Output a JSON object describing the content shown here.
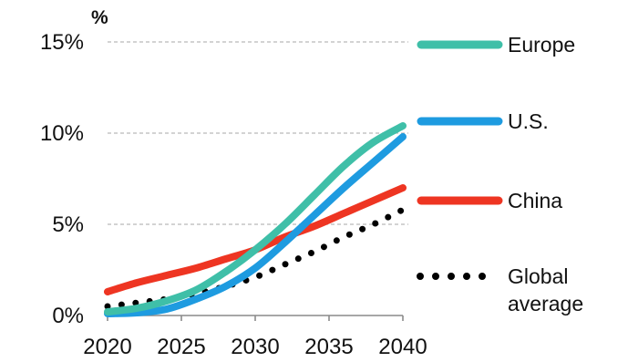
{
  "chart_data": {
    "type": "line",
    "title": "",
    "xlabel": "",
    "ylabel": "%",
    "x": [
      2020,
      2022,
      2024,
      2026,
      2028,
      2030,
      2032,
      2034,
      2036,
      2038,
      2040
    ],
    "xlim": [
      2020,
      2040
    ],
    "ylim": [
      0,
      15
    ],
    "x_ticks": [
      2020,
      2025,
      2030,
      2035,
      2040
    ],
    "x_tick_labels": [
      "2020",
      "2025",
      "2030",
      "2035",
      "2040"
    ],
    "y_ticks": [
      0,
      5,
      10,
      15
    ],
    "y_tick_labels": [
      "0%",
      "5%",
      "10%",
      "15%"
    ],
    "grid": true,
    "legend_position": "right",
    "series": [
      {
        "name": "Europe",
        "color": "#3fbfa8",
        "style": "solid",
        "values": [
          0.2,
          0.4,
          0.8,
          1.4,
          2.4,
          3.6,
          5.0,
          6.6,
          8.2,
          9.5,
          10.4
        ]
      },
      {
        "name": "U.S.",
        "color": "#1e9be0",
        "style": "solid",
        "values": [
          0.1,
          0.15,
          0.35,
          0.9,
          1.6,
          2.6,
          4.0,
          5.5,
          7.0,
          8.4,
          9.8
        ]
      },
      {
        "name": "China",
        "color": "#ee3522",
        "style": "solid",
        "values": [
          1.3,
          1.8,
          2.2,
          2.6,
          3.1,
          3.6,
          4.3,
          4.9,
          5.6,
          6.3,
          7.0
        ]
      },
      {
        "name": "Global average",
        "color": "#000000",
        "style": "dotted",
        "values": [
          0.5,
          0.7,
          0.9,
          1.2,
          1.6,
          2.1,
          2.8,
          3.5,
          4.3,
          5.0,
          5.8
        ]
      }
    ],
    "legend_labels": [
      [
        "Europe"
      ],
      [
        "U.S."
      ],
      [
        "China"
      ],
      [
        "Global",
        "average"
      ]
    ]
  }
}
